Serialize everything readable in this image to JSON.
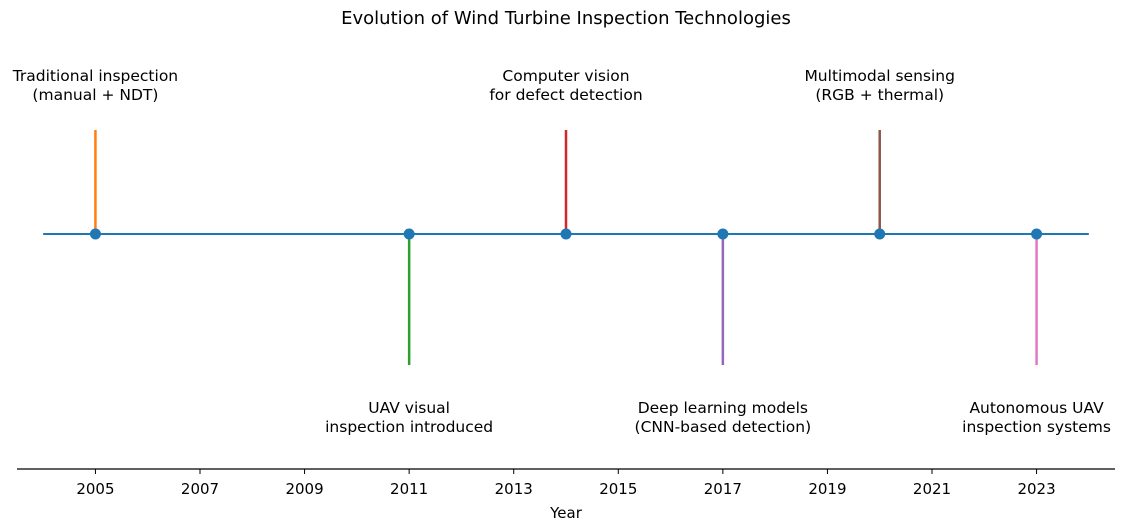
{
  "chart_data": {
    "type": "timeline",
    "title": "Evolution of Wind Turbine Inspection Technologies",
    "xlabel": "Year",
    "xlim": [
      2004,
      2024
    ],
    "xticks": [
      "2005",
      "2007",
      "2009",
      "2011",
      "2013",
      "2015",
      "2017",
      "2019",
      "2021",
      "2023"
    ],
    "events": [
      {
        "year": 2005,
        "lines": [
          "Traditional inspection",
          "(manual + NDT)"
        ],
        "direction": "up",
        "color": "#ff7f0e"
      },
      {
        "year": 2011,
        "lines": [
          "UAV visual",
          "inspection introduced"
        ],
        "direction": "down",
        "color": "#2ca02c"
      },
      {
        "year": 2014,
        "lines": [
          "Computer vision",
          "for defect detection"
        ],
        "direction": "up",
        "color": "#d62728"
      },
      {
        "year": 2017,
        "lines": [
          "Deep learning models",
          "(CNN-based detection)"
        ],
        "direction": "down",
        "color": "#9467bd"
      },
      {
        "year": 2020,
        "lines": [
          "Multimodal sensing",
          "(RGB + thermal)"
        ],
        "direction": "up",
        "color": "#8c564b"
      },
      {
        "year": 2023,
        "lines": [
          "Autonomous UAV",
          "inspection systems"
        ],
        "direction": "down",
        "color": "#e377c2"
      }
    ],
    "baseline_color": "#1f77b4",
    "marker_color": "#1f77b4",
    "grid": false,
    "legend": "none"
  }
}
